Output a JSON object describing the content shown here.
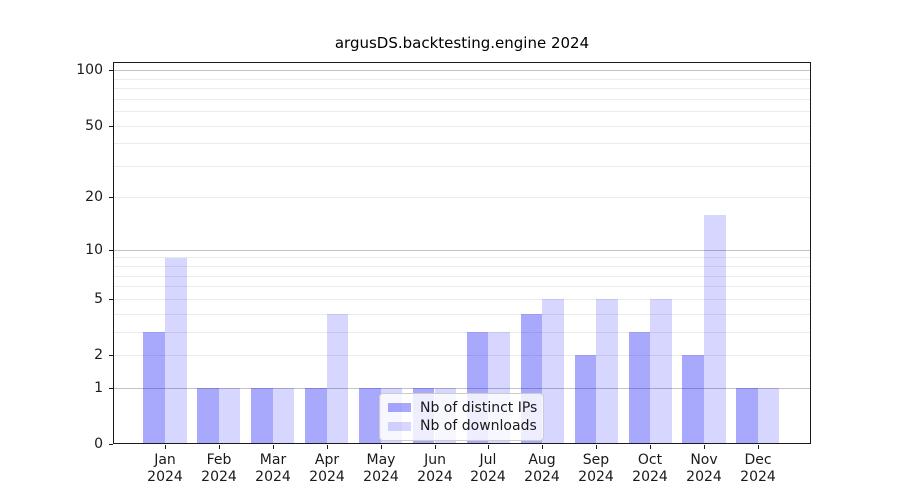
{
  "chart_data": {
    "type": "bar",
    "title": "argusDS.backtesting.engine 2024",
    "year_label": "2024",
    "categories": [
      "Jan",
      "Feb",
      "Mar",
      "Apr",
      "May",
      "Jun",
      "Jul",
      "Aug",
      "Sep",
      "Oct",
      "Nov",
      "Dec"
    ],
    "series": [
      {
        "key": "distinct-ips",
        "name": "Nb of distinct IPs",
        "color": "rgba(0,0,250,0.34)",
        "values": [
          3,
          1,
          1,
          1,
          1,
          1,
          3,
          4,
          2,
          3,
          2,
          1
        ]
      },
      {
        "key": "downloads",
        "name": "Nb of downloads",
        "color": "rgba(0,0,250,0.16)",
        "values": [
          9,
          1,
          1,
          4,
          1,
          1,
          3,
          5,
          5,
          5,
          16,
          1
        ]
      }
    ],
    "y_axis": {
      "scale": "log1p",
      "ticks": [
        100,
        50,
        20,
        10,
        5,
        2,
        1,
        0
      ],
      "major_gridlines": [
        1,
        10,
        100
      ],
      "minor_gridlines": [
        2,
        3,
        4,
        5,
        6,
        7,
        8,
        9,
        20,
        30,
        40,
        50,
        60,
        70,
        80,
        90
      ],
      "range": [
        0,
        111
      ]
    },
    "legend_position": "lower center",
    "grid": true
  },
  "colors": {
    "bar_distinct_ips": "rgba(0,0,250,0.34)",
    "bar_downloads": "rgba(0,0,250,0.16)",
    "grid_major": "#c3c3c3",
    "grid_minor": "#ebebeb",
    "spine": "#1a1a1a",
    "text": "#1a1a1a",
    "legend_border": "#cccccc",
    "legend_bg": "rgba(255,255,255,0.8)"
  }
}
